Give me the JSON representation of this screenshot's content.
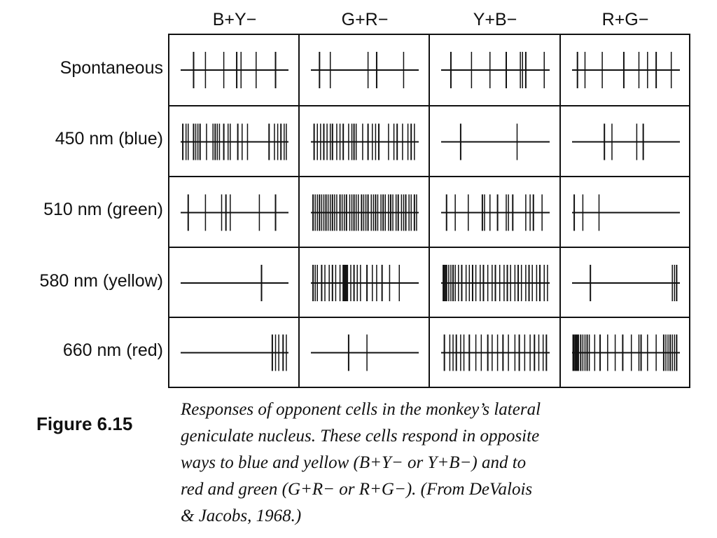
{
  "columns": [
    "B+Y−",
    "G+R−",
    "Y+B−",
    "R+G−"
  ],
  "rows": [
    "Spontaneous",
    "450 nm (blue)",
    "510 nm (green)",
    "580 nm (yellow)",
    "660 nm (red)"
  ],
  "spikes": [
    [
      [
        0.12,
        0.23,
        0.4,
        0.52,
        0.56,
        0.7,
        0.88
      ],
      [
        0.08,
        0.18,
        0.53,
        0.61,
        0.86
      ],
      [
        0.09,
        0.28,
        0.45,
        0.6,
        0.73,
        0.75,
        0.78,
        0.95
      ],
      [
        0.05,
        0.12,
        0.28,
        0.48,
        0.62,
        0.7,
        0.78,
        0.92
      ]
    ],
    [
      [
        0.02,
        0.05,
        0.07,
        0.12,
        0.14,
        0.16,
        0.18,
        0.24,
        0.3,
        0.32,
        0.34,
        0.36,
        0.4,
        0.44,
        0.46,
        0.53,
        0.57,
        0.62,
        0.82,
        0.87,
        0.9,
        0.93,
        0.96,
        0.98
      ],
      [
        0.03,
        0.06,
        0.09,
        0.12,
        0.15,
        0.18,
        0.2,
        0.24,
        0.27,
        0.3,
        0.35,
        0.38,
        0.4,
        0.42,
        0.48,
        0.53,
        0.57,
        0.6,
        0.63,
        0.72,
        0.77,
        0.8,
        0.85,
        0.9,
        0.93,
        0.96
      ],
      [
        0.18,
        0.7
      ],
      [
        0.3,
        0.37,
        0.6,
        0.66
      ]
    ],
    [
      [
        0.07,
        0.23,
        0.38,
        0.42,
        0.46,
        0.73,
        0.88
      ],
      [
        0.02,
        0.04,
        0.06,
        0.08,
        0.1,
        0.12,
        0.14,
        0.16,
        0.18,
        0.2,
        0.22,
        0.24,
        0.27,
        0.29,
        0.31,
        0.33,
        0.36,
        0.38,
        0.4,
        0.42,
        0.44,
        0.47,
        0.49,
        0.51,
        0.53,
        0.56,
        0.58,
        0.6,
        0.62,
        0.65,
        0.67,
        0.69,
        0.72,
        0.74,
        0.76,
        0.79,
        0.81,
        0.84,
        0.86,
        0.88,
        0.91,
        0.93,
        0.96,
        0.98
      ],
      [
        0.05,
        0.13,
        0.25,
        0.38,
        0.4,
        0.45,
        0.52,
        0.6,
        0.62,
        0.66,
        0.78,
        0.82,
        0.85,
        0.93
      ],
      [
        0.02,
        0.1,
        0.25
      ]
    ],
    [
      [
        0.75
      ],
      [
        0.02,
        0.04,
        0.06,
        0.1,
        0.13,
        0.17,
        0.2,
        0.23,
        0.27,
        0.3,
        0.31,
        0.32,
        0.33,
        0.34,
        0.37,
        0.4,
        0.43,
        0.46,
        0.52,
        0.57,
        0.61,
        0.66,
        0.73,
        0.82
      ],
      [
        0.02,
        0.03,
        0.04,
        0.05,
        0.07,
        0.09,
        0.11,
        0.13,
        0.16,
        0.19,
        0.23,
        0.26,
        0.29,
        0.32,
        0.36,
        0.39,
        0.43,
        0.47,
        0.5,
        0.54,
        0.58,
        0.61,
        0.64,
        0.68,
        0.71,
        0.74,
        0.78,
        0.81,
        0.84,
        0.88,
        0.91,
        0.95,
        0.98
      ],
      [
        0.17,
        0.93,
        0.95,
        0.97
      ]
    ],
    [
      [
        0.85,
        0.88,
        0.91,
        0.95,
        0.98
      ],
      [
        0.35,
        0.52
      ],
      [
        0.03,
        0.08,
        0.11,
        0.14,
        0.18,
        0.21,
        0.26,
        0.32,
        0.37,
        0.43,
        0.47,
        0.52,
        0.57,
        0.62,
        0.68,
        0.72,
        0.77,
        0.82,
        0.86,
        0.9,
        0.94,
        0.97
      ],
      [
        0.01,
        0.02,
        0.03,
        0.04,
        0.05,
        0.06,
        0.08,
        0.1,
        0.12,
        0.14,
        0.16,
        0.21,
        0.26,
        0.33,
        0.4,
        0.47,
        0.55,
        0.62,
        0.64,
        0.7,
        0.78,
        0.85,
        0.87,
        0.89,
        0.91,
        0.93,
        0.95,
        0.97
      ]
    ]
  ],
  "figure_label": "Figure 6.15",
  "caption_line1": "Responses of opponent cells in the monkey’s lateral",
  "caption_line2": "geniculate nucleus. These cells respond in opposite",
  "caption_line3": "ways to blue and yellow (B+Y− or Y+B−) and to",
  "caption_line4": "red and green (G+R− or R+G−). (From DeValois",
  "caption_line5": "& Jacobs, 1968.)"
}
